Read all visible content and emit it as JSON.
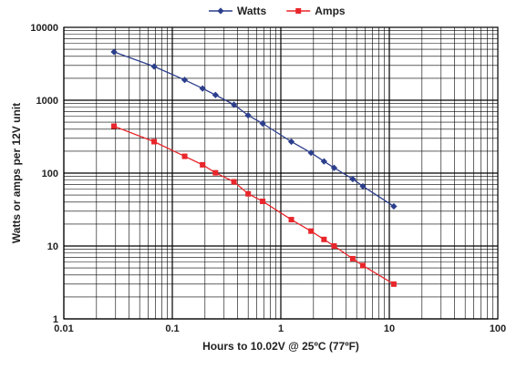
{
  "chart_data": {
    "type": "line",
    "x_scale": "log",
    "y_scale": "log",
    "xlim": [
      0.01,
      100
    ],
    "ylim": [
      1,
      10000
    ],
    "grid": true,
    "legend_position": "top",
    "xlabel": "Hours to 10.02V @ 25ºC (77ºF)",
    "ylabel": "Watts or amps per 12V unit",
    "x_tick_labels": [
      "0.01",
      "0.1",
      "1",
      "10",
      "100"
    ],
    "y_tick_labels": [
      "1",
      "10",
      "100",
      "1000",
      "10000"
    ],
    "series": [
      {
        "name": "Watts",
        "color": "#2c3f8c",
        "marker": "diamond",
        "x": [
          0.029,
          0.068,
          0.13,
          0.19,
          0.25,
          0.37,
          0.5,
          0.68,
          1.25,
          1.9,
          2.5,
          3.1,
          4.6,
          5.7,
          11
        ],
        "y": [
          4600,
          2900,
          1900,
          1450,
          1180,
          870,
          620,
          480,
          270,
          190,
          145,
          118,
          83,
          66,
          35
        ]
      },
      {
        "name": "Amps",
        "color": "#e8262b",
        "marker": "square",
        "x": [
          0.029,
          0.068,
          0.13,
          0.19,
          0.25,
          0.37,
          0.5,
          0.68,
          1.25,
          1.9,
          2.5,
          3.1,
          4.6,
          5.7,
          11
        ],
        "y": [
          440,
          270,
          170,
          130,
          101,
          76,
          52,
          41,
          23,
          16,
          12.3,
          10,
          6.7,
          5.4,
          3
        ]
      }
    ]
  }
}
